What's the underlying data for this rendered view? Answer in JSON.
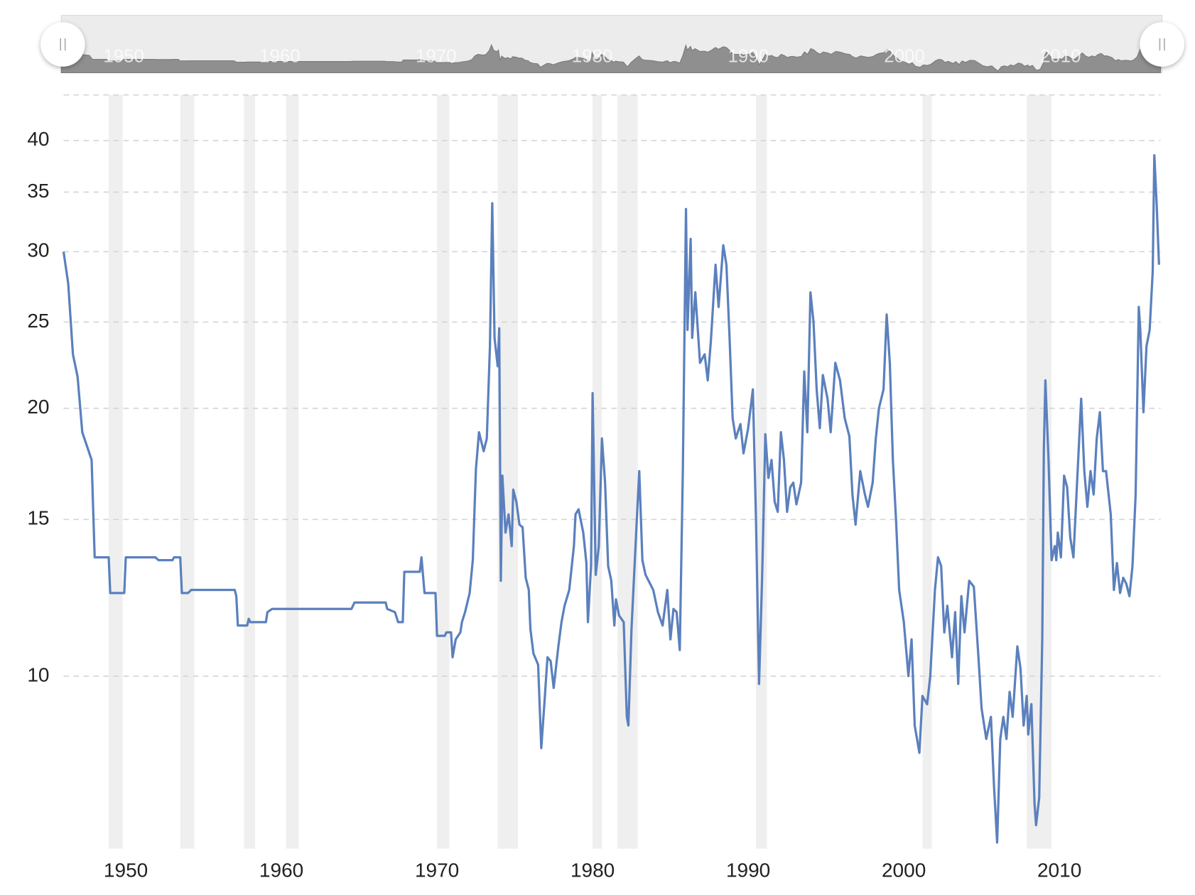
{
  "chart_data": {
    "type": "line",
    "log_scale": true,
    "grid": true,
    "color": "#5b80bd",
    "shade_color": "#efefef",
    "navigator": true,
    "xlim": [
      1946,
      2016.5
    ],
    "xticks": [
      1950,
      1960,
      1970,
      1980,
      1990,
      2000,
      2010
    ],
    "ylim": [
      6.4,
      45
    ],
    "yticks": [
      10,
      15,
      20,
      25,
      30,
      35,
      40
    ],
    "shaded_periods": [
      [
        1948.9,
        1949.8
      ],
      [
        1953.5,
        1954.4
      ],
      [
        1957.6,
        1958.3
      ],
      [
        1960.3,
        1961.1
      ],
      [
        1970.0,
        1970.8
      ],
      [
        1973.9,
        1975.2
      ],
      [
        1980.0,
        1980.6
      ],
      [
        1981.6,
        1982.9
      ],
      [
        1990.5,
        1991.2
      ],
      [
        2001.2,
        2001.8
      ],
      [
        2007.9,
        2009.5
      ]
    ],
    "x": [
      1946.0,
      1946.3,
      1946.6,
      1946.9,
      1947.2,
      1947.8,
      1948.0,
      1948.9,
      1949.0,
      1949.9,
      1950.0,
      1951.9,
      1952.1,
      1953.0,
      1953.1,
      1953.5,
      1953.6,
      1954.0,
      1954.2,
      1957.0,
      1957.1,
      1957.2,
      1957.8,
      1957.9,
      1958.0,
      1959.0,
      1959.1,
      1959.4,
      1964.5,
      1964.7,
      1966.7,
      1966.8,
      1967.3,
      1967.5,
      1967.8,
      1967.9,
      1968.9,
      1969.0,
      1969.2,
      1969.9,
      1970.0,
      1970.5,
      1970.6,
      1970.9,
      1971.0,
      1971.2,
      1971.5,
      1971.6,
      1971.8,
      1972.1,
      1972.3,
      1972.5,
      1972.7,
      1973.0,
      1973.2,
      1973.4,
      1973.55,
      1973.7,
      1973.9,
      1974.0,
      1974.1,
      1974.2,
      1974.4,
      1974.6,
      1974.8,
      1974.9,
      1975.1,
      1975.3,
      1975.5,
      1975.7,
      1975.9,
      1976.0,
      1976.2,
      1976.5,
      1976.7,
      1976.9,
      1977.1,
      1977.3,
      1977.5,
      1977.8,
      1978.0,
      1978.2,
      1978.5,
      1978.8,
      1978.9,
      1979.1,
      1979.4,
      1979.6,
      1979.7,
      1979.9,
      1980.0,
      1980.2,
      1980.4,
      1980.6,
      1980.8,
      1981.0,
      1981.2,
      1981.4,
      1981.5,
      1981.7,
      1982.0,
      1982.2,
      1982.3,
      1982.5,
      1982.8,
      1983.0,
      1983.2,
      1983.4,
      1983.6,
      1983.9,
      1984.2,
      1984.5,
      1984.8,
      1985.0,
      1985.2,
      1985.4,
      1985.6,
      1985.8,
      1986.0,
      1986.1,
      1986.3,
      1986.4,
      1986.6,
      1986.9,
      1987.2,
      1987.4,
      1987.6,
      1987.9,
      1988.1,
      1988.4,
      1988.6,
      1988.8,
      1989.0,
      1989.2,
      1989.5,
      1989.7,
      1990.0,
      1990.3,
      1990.5,
      1990.7,
      1990.9,
      1991.1,
      1991.3,
      1991.5,
      1991.7,
      1991.9,
      1992.1,
      1992.3,
      1992.5,
      1992.7,
      1992.9,
      1993.1,
      1993.4,
      1993.6,
      1993.8,
      1994.0,
      1994.2,
      1994.4,
      1994.6,
      1994.8,
      1995.1,
      1995.3,
      1995.6,
      1995.9,
      1996.2,
      1996.5,
      1996.7,
      1996.9,
      1997.2,
      1997.5,
      1997.7,
      1998.0,
      1998.2,
      1998.4,
      1998.7,
      1998.9,
      1999.1,
      1999.3,
      1999.5,
      1999.7,
      2000.0,
      2000.3,
      2000.5,
      2000.7,
      2001.0,
      2001.2,
      2001.5,
      2001.7,
      2002.0,
      2002.2,
      2002.4,
      2002.6,
      2002.8,
      2003.1,
      2003.3,
      2003.5,
      2003.7,
      2003.9,
      2004.2,
      2004.5,
      2004.8,
      2005.0,
      2005.3,
      2005.6,
      2005.8,
      2006.0,
      2006.2,
      2006.4,
      2006.6,
      2006.8,
      2007.0,
      2007.3,
      2007.5,
      2007.7,
      2007.9,
      2008.0,
      2008.2,
      2008.4,
      2008.5,
      2008.7,
      2008.9,
      2009.0,
      2009.1,
      2009.3,
      2009.5,
      2009.7,
      2009.8,
      2009.9,
      2010.1,
      2010.3,
      2010.5,
      2010.7,
      2010.9,
      2011.1,
      2011.4,
      2011.6,
      2011.8,
      2012.0,
      2012.2,
      2012.4,
      2012.6,
      2012.8,
      2013.0,
      2013.3,
      2013.5,
      2013.7,
      2013.9,
      2014.1,
      2014.3,
      2014.5,
      2014.7,
      2014.9,
      2015.1,
      2015.2,
      2015.4,
      2015.6,
      2015.8,
      2016.0,
      2016.1,
      2016.25,
      2016.4
    ],
    "values": [
      30,
      27.6,
      23,
      21.7,
      18.8,
      17.5,
      13.6,
      13.6,
      12.4,
      12.4,
      13.6,
      13.6,
      13.5,
      13.5,
      13.6,
      13.6,
      12.4,
      12.4,
      12.5,
      12.5,
      12.3,
      11.4,
      11.4,
      11.6,
      11.5,
      11.5,
      11.8,
      11.9,
      11.9,
      12.1,
      12.1,
      11.9,
      11.8,
      11.5,
      11.5,
      13.1,
      13.1,
      13.6,
      12.4,
      12.4,
      11.1,
      11.1,
      11.2,
      11.2,
      10.5,
      11.0,
      11.2,
      11.5,
      11.8,
      12.4,
      13.5,
      17.1,
      18.8,
      17.9,
      18.5,
      23.5,
      34,
      24,
      22.3,
      24.6,
      12.8,
      16.8,
      14.5,
      15.2,
      14,
      16.2,
      15.7,
      14.8,
      14.7,
      12.9,
      12.5,
      11.3,
      10.6,
      10.3,
      8.3,
      9.3,
      10.5,
      10.4,
      9.7,
      10.8,
      11.5,
      12.0,
      12.5,
      14.0,
      15.2,
      15.4,
      14.5,
      13.4,
      11.5,
      13.3,
      20.8,
      13.0,
      14.0,
      18.5,
      16.5,
      13.3,
      12.8,
      11.4,
      12.2,
      11.7,
      11.5,
      9.0,
      8.8,
      11.3,
      14.5,
      17.0,
      13.5,
      13.0,
      12.8,
      12.5,
      11.8,
      11.4,
      12.5,
      11.0,
      11.9,
      11.8,
      10.7,
      17,
      33.5,
      24.5,
      31,
      24,
      27,
      22.5,
      23,
      21.5,
      23.8,
      29,
      26,
      30.5,
      29,
      24,
      19.5,
      18.5,
      19.2,
      17.8,
      19,
      21,
      15,
      9.8,
      13,
      18.7,
      16.7,
      17.5,
      15.7,
      15.3,
      18.8,
      17.5,
      15.3,
      16.3,
      16.5,
      15.6,
      16.5,
      22,
      18.8,
      27,
      25,
      21,
      19,
      21.8,
      20.5,
      18.8,
      22.5,
      21.5,
      19.5,
      18.6,
      16,
      14.8,
      17,
      16,
      15.5,
      16.5,
      18.5,
      20,
      21,
      25.5,
      22.5,
      17.5,
      15,
      12.5,
      11.5,
      10,
      11,
      8.8,
      8.2,
      9.5,
      9.3,
      10.0,
      12.5,
      13.6,
      13.3,
      11.2,
      12,
      10.5,
      11.8,
      9.8,
      12.3,
      11.2,
      12.8,
      12.6,
      10.5,
      9.2,
      8.5,
      9.0,
      7.5,
      6.5,
      8.5,
      9.0,
      8.5,
      9.6,
      9.0,
      10.8,
      10.2,
      8.8,
      9.5,
      8.6,
      9.3,
      7.2,
      6.8,
      7.3,
      11,
      18,
      21.5,
      17.5,
      13.5,
      14,
      13.5,
      14.5,
      13.6,
      16.8,
      16.3,
      14.3,
      13.6,
      16,
      20.5,
      17,
      15.5,
      17,
      16,
      18.5,
      19.8,
      17,
      17,
      15.2,
      12.5,
      13.4,
      12.4,
      12.9,
      12.7,
      12.3,
      13.3,
      16,
      26,
      24.5,
      19.8,
      23.5,
      24.5,
      28.5,
      38.5,
      34,
      29
    ]
  }
}
